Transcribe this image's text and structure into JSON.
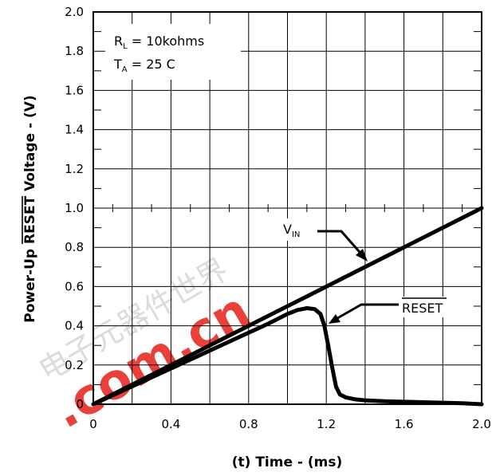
{
  "chart_data": {
    "type": "line",
    "title": "",
    "xlabel": "(t)  Time - (ms)",
    "ylabel": {
      "prefix": "Power-Up ",
      "overlined": "RESET",
      "suffix": " Voltage - (V)"
    },
    "xlim": [
      0,
      2.0
    ],
    "ylim": [
      0,
      2.0
    ],
    "x_ticks": [
      "0",
      "0.4",
      "0.8",
      "1.2",
      "1.6",
      "2.0"
    ],
    "y_ticks": [
      "0",
      "0.2",
      "0.4",
      "0.6",
      "0.8",
      "1.0",
      "1.2",
      "1.4",
      "1.6",
      "1.8",
      "2.0"
    ],
    "grid": true,
    "conditions": {
      "rl": {
        "main": "R",
        "sub": "L",
        "rest": " = 10kohms"
      },
      "ta": {
        "main": "T",
        "sub": "A",
        "rest": " = 25  C"
      }
    },
    "series": [
      {
        "name": "VIN",
        "label": {
          "main": "V",
          "sub": "IN"
        },
        "x": [
          0,
          2.0
        ],
        "y": [
          0,
          1.0
        ]
      },
      {
        "name": "RESET",
        "label": {
          "overlined": "RESET"
        },
        "x": [
          0,
          0.9,
          1.0,
          1.05,
          1.1,
          1.14,
          1.17,
          1.19,
          1.21,
          1.23,
          1.25,
          1.27,
          1.3,
          1.35,
          1.4,
          1.5,
          1.7,
          1.9,
          2.0
        ],
        "y": [
          0,
          0.41,
          0.46,
          0.48,
          0.49,
          0.485,
          0.46,
          0.4,
          0.3,
          0.19,
          0.09,
          0.05,
          0.035,
          0.025,
          0.02,
          0.015,
          0.01,
          0.005,
          0.0
        ]
      }
    ],
    "color": "#000000"
  },
  "watermark": {
    "text": ".com.cn",
    "cjk": "电子元器件世界",
    "color": "#e8302a"
  }
}
